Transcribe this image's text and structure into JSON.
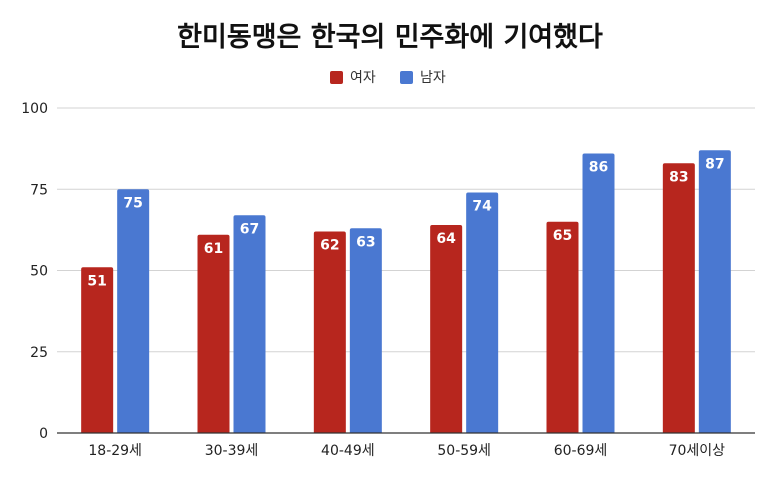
{
  "chart_data": {
    "type": "bar",
    "title": "한미동맹은 한국의 민주화에 기여했다",
    "xlabel": "",
    "ylabel": "",
    "categories": [
      "18-29세",
      "30-39세",
      "40-49세",
      "50-59세",
      "60-69세",
      "70세이상"
    ],
    "series": [
      {
        "name": "여자",
        "color": "#b7261e",
        "values": [
          51,
          61,
          62,
          64,
          65,
          83
        ]
      },
      {
        "name": "남자",
        "color": "#4a78d1",
        "values": [
          75,
          67,
          63,
          74,
          86,
          87
        ]
      }
    ],
    "ylim": [
      0,
      100
    ],
    "yticks": [
      0,
      25,
      50,
      75,
      100
    ],
    "grid": true,
    "legend_position": "top-center",
    "data_labels": true
  }
}
